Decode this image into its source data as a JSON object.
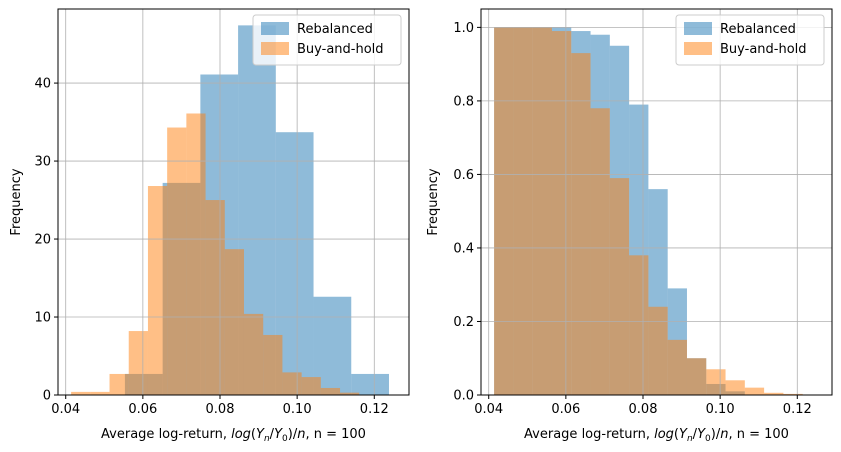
{
  "colors": {
    "rebalanced": "#1f77b4",
    "buy_and_hold": "#ff7f0e",
    "grid": "#b0b0b0",
    "axes": "#000000"
  },
  "chart_data": [
    {
      "type": "histogram",
      "xlabel_prefix": "Average log-return, ",
      "xlabel_math": "log(Y_n/Y_0)/n",
      "xlabel_suffix": ", n = 100",
      "ylabel": "Frequency",
      "xlim": [
        0.038,
        0.129
      ],
      "ylim": [
        0,
        49.5
      ],
      "xticks": [
        0.04,
        0.06,
        0.08,
        0.1,
        0.12
      ],
      "xtick_labels": [
        "0.04",
        "0.06",
        "0.08",
        "0.10",
        "0.12"
      ],
      "yticks": [
        0,
        10,
        20,
        30,
        40
      ],
      "ytick_labels": [
        "0",
        "10",
        "20",
        "30",
        "40"
      ],
      "grid": true,
      "legend_position": "top-right",
      "alpha": 0.5,
      "series": [
        {
          "name": "Rebalanced",
          "color_key": "rebalanced",
          "bin_edges": [
            0.05535,
            0.06513,
            0.07491,
            0.08469,
            0.09447,
            0.10425,
            0.11403,
            0.12381
          ],
          "values": [
            2.7,
            27.2,
            41.1,
            47.4,
            33.7,
            12.6,
            2.7
          ]
        },
        {
          "name": "Buy-and-hold",
          "color_key": "buy_and_hold",
          "bin_edges": [
            0.0414,
            0.04638,
            0.05136,
            0.05634,
            0.06132,
            0.0663,
            0.07128,
            0.07626,
            0.08124,
            0.08622,
            0.0912,
            0.09618,
            0.10116,
            0.10614,
            0.11112,
            0.1161,
            0.12108,
            0.12606
          ],
          "values": [
            0.4,
            0.4,
            2.7,
            8.2,
            26.8,
            34.3,
            36.1,
            25.0,
            18.7,
            10.4,
            7.7,
            2.9,
            2.3,
            0.9,
            0.3,
            0.0,
            0.0
          ]
        }
      ]
    },
    {
      "type": "histogram",
      "xlabel_prefix": "Average log-return, ",
      "xlabel_math": "log(Y_n/Y_0)/n",
      "xlabel_suffix": ", n = 100",
      "ylabel": "Frequency",
      "xlim": [
        0.038,
        0.129
      ],
      "ylim": [
        0,
        1.05
      ],
      "xticks": [
        0.04,
        0.06,
        0.08,
        0.1,
        0.12
      ],
      "xtick_labels": [
        "0.04",
        "0.06",
        "0.08",
        "0.10",
        "0.12"
      ],
      "yticks": [
        0.0,
        0.2,
        0.4,
        0.6,
        0.8,
        1.0
      ],
      "ytick_labels": [
        "0.0",
        "0.2",
        "0.4",
        "0.6",
        "0.8",
        "1.0"
      ],
      "grid": true,
      "legend_position": "top-right",
      "alpha": 0.5,
      "series": [
        {
          "name": "Rebalanced",
          "color_key": "rebalanced",
          "bin_edges": [
            0.0414,
            0.0464,
            0.0514,
            0.0564,
            0.0614,
            0.0664,
            0.0714,
            0.0764,
            0.0814,
            0.0864,
            0.0914,
            0.0964,
            0.1014,
            0.1064
          ],
          "values": [
            1.0,
            1.0,
            1.0,
            1.0,
            0.99,
            0.98,
            0.95,
            0.79,
            0.56,
            0.29,
            0.1,
            0.03,
            0.01
          ]
        },
        {
          "name": "Buy-and-hold",
          "color_key": "buy_and_hold",
          "bin_edges": [
            0.0414,
            0.0464,
            0.0514,
            0.0564,
            0.0614,
            0.0664,
            0.0714,
            0.0764,
            0.0814,
            0.0864,
            0.0914,
            0.0964,
            0.1014,
            0.1064,
            0.1114,
            0.1164,
            0.1214,
            0.1264
          ],
          "values": [
            1.0,
            1.0,
            1.0,
            0.99,
            0.93,
            0.78,
            0.59,
            0.38,
            0.24,
            0.15,
            0.1,
            0.07,
            0.04,
            0.02,
            0.006,
            0.003,
            0.001
          ]
        }
      ]
    }
  ]
}
